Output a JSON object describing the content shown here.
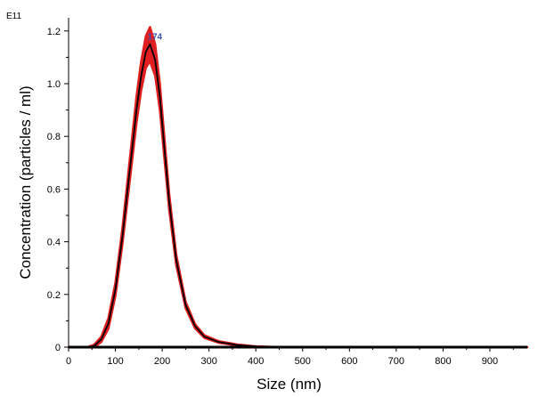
{
  "chart_data": {
    "type": "line",
    "xlabel": "Size (nm)",
    "ylabel": "Concentration (particles / ml)",
    "y_multiplier_label": "E11",
    "xlim": [
      0,
      980
    ],
    "ylim": [
      0,
      1.25
    ],
    "x_ticks": [
      0,
      100,
      200,
      300,
      400,
      500,
      600,
      700,
      800,
      900
    ],
    "y_ticks": [
      0,
      0.2,
      0.4,
      0.6,
      0.8,
      1.0,
      1.2
    ],
    "y_tick_labels": [
      "0",
      "0.2",
      "0.4",
      "0.6",
      "0.8",
      "1.0",
      "1.2"
    ],
    "peak_annotation": {
      "text": "174",
      "x": 174,
      "y": 1.17
    },
    "colors": {
      "mean_line": "#000000",
      "error_band": "#e02020"
    },
    "series": [
      {
        "x": [
          0,
          40,
          55,
          70,
          85,
          100,
          115,
          130,
          145,
          155,
          165,
          174,
          185,
          195,
          205,
          215,
          230,
          250,
          270,
          290,
          320,
          360,
          400,
          440,
          500,
          600,
          700,
          800,
          900,
          980
        ],
        "values": [
          0,
          0,
          0.005,
          0.03,
          0.09,
          0.22,
          0.42,
          0.66,
          0.9,
          1.03,
          1.12,
          1.15,
          1.09,
          0.95,
          0.75,
          0.55,
          0.33,
          0.16,
          0.08,
          0.04,
          0.02,
          0.008,
          0.003,
          0.001,
          0,
          0,
          0,
          0,
          0,
          0
        ],
        "error": [
          0,
          0,
          0.005,
          0.01,
          0.02,
          0.025,
          0.03,
          0.04,
          0.05,
          0.055,
          0.06,
          0.065,
          0.06,
          0.05,
          0.04,
          0.03,
          0.02,
          0.012,
          0.008,
          0.005,
          0.003,
          0.002,
          0,
          0,
          0,
          0,
          0,
          0,
          0,
          0
        ]
      }
    ]
  }
}
